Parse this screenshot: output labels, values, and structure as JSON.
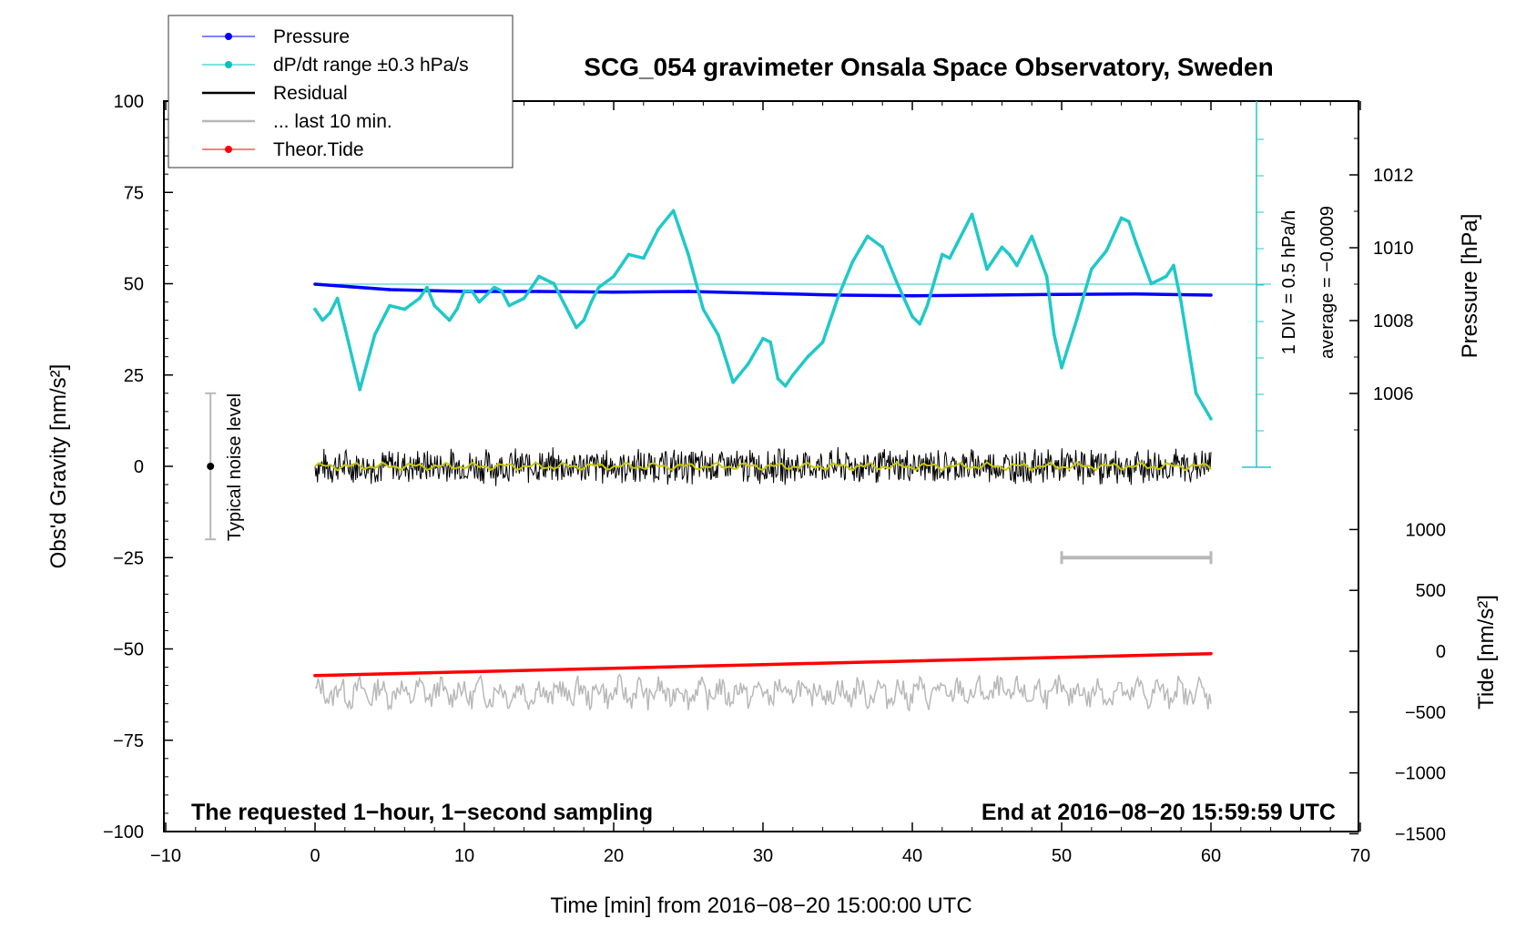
{
  "chart_data": {
    "type": "line",
    "title": "SCG_054 gravimeter Onsala Space Observatory, Sweden",
    "xlabel": "Time [min] from 2016−08−20 15:00:00 UTC",
    "ylabel_left": "Obs'd Gravity [nm/s²]",
    "ylabel_right_top": "Pressure [hPa]",
    "ylabel_right_bottom": "Tide [nm/s²]",
    "xlim": [
      -10,
      70
    ],
    "ylim_left": [
      -100,
      100
    ],
    "pressure_range": [
      1004,
      1014
    ],
    "tide_range": [
      -1500,
      1000
    ],
    "x_ticks": [
      "−10",
      "0",
      "10",
      "20",
      "30",
      "40",
      "50",
      "60",
      "70"
    ],
    "y_left_ticks": [
      "100",
      "75",
      "50",
      "25",
      "0",
      "−25",
      "−50",
      "−75",
      "−100"
    ],
    "pressure_ticks": [
      "1012",
      "1010",
      "1008",
      "1006"
    ],
    "tide_ticks": [
      "1000",
      "500",
      "0",
      "−500",
      "−1000",
      "−1500"
    ],
    "legend": {
      "placement": "top-left",
      "entries": [
        {
          "label": "Pressure",
          "color": "#0000ff",
          "marker": true
        },
        {
          "label": "dP/dt range ±0.3 hPa/s",
          "color": "#00c0c0",
          "marker": true
        },
        {
          "label": "Residual",
          "color": "#000000",
          "marker": false
        },
        {
          "label": "... last 10 min.",
          "color": "#b8b8b8",
          "marker": false
        },
        {
          "label": "Theor.Tide",
          "color": "#ff0000",
          "marker": true
        }
      ]
    },
    "series": [
      {
        "name": "Pressure",
        "color": "#0000ff",
        "axis": "pressure",
        "x": [
          0,
          5,
          10,
          15,
          20,
          25,
          30,
          35,
          40,
          45,
          50,
          55,
          60
        ],
        "values": [
          1009.0,
          1008.85,
          1008.8,
          1008.8,
          1008.78,
          1008.8,
          1008.75,
          1008.7,
          1008.68,
          1008.7,
          1008.72,
          1008.73,
          1008.7
        ]
      },
      {
        "name": "dP/dt range ±0.3 hPa/s",
        "color": "#20c8c8",
        "axis": "left",
        "x": [
          0,
          0.5,
          1,
          1.5,
          2,
          3,
          4,
          5,
          6,
          7,
          7.5,
          8,
          9,
          9.5,
          10,
          10.5,
          11,
          12,
          12.5,
          13,
          14,
          15,
          16,
          17,
          17.5,
          18,
          18.5,
          19,
          20,
          21,
          22,
          23,
          24,
          25,
          26,
          27,
          28,
          29,
          30,
          30.5,
          31,
          31.5,
          32,
          33,
          34,
          35,
          36,
          37,
          38,
          39,
          40,
          40.5,
          41,
          42,
          42.5,
          43,
          44,
          45,
          46,
          46.5,
          47,
          48,
          49,
          49.5,
          50,
          51,
          52,
          53,
          54,
          54.5,
          55,
          56,
          57,
          57.5,
          58,
          59,
          60
        ],
        "values": [
          43,
          40,
          42,
          46,
          38,
          21,
          36,
          44,
          43,
          46,
          49,
          44,
          40,
          43,
          48,
          48,
          45,
          49,
          48,
          44,
          46,
          52,
          50,
          42,
          38,
          40,
          45,
          49,
          52,
          58,
          57,
          65,
          70,
          58,
          43,
          36,
          23,
          28,
          35,
          34,
          24,
          22,
          25,
          30,
          34,
          46,
          56,
          63,
          60,
          50,
          41,
          39,
          44,
          58,
          57,
          61,
          69,
          54,
          60,
          58,
          55,
          63,
          52,
          36,
          27,
          40,
          54,
          59,
          68,
          67,
          61,
          50,
          52,
          55,
          45,
          20,
          13
        ]
      },
      {
        "name": "Theor.Tide",
        "color": "#ff0000",
        "axis": "tide",
        "x": [
          0,
          10,
          20,
          30,
          40,
          50,
          60
        ],
        "values": [
          -200,
          -170,
          -140,
          -110,
          -80,
          -50,
          -20
        ]
      }
    ],
    "residual_band": {
      "center": 0,
      "amplitude": 5,
      "smooth_color": "#c8c800"
    },
    "last_10_min_bar": {
      "x_start": 50,
      "x_end": 60
    },
    "pressure_reference_line_hPa": 1009,
    "dpdt_scale": {
      "label": "1 DIV = 0.5 hPa/h",
      "average": "average = −0.0009"
    },
    "noise_indicator": {
      "label": "Typical noise level",
      "range": [
        -20,
        20
      ],
      "x": -7
    },
    "annotations": {
      "left_bottom": "The requested 1−hour, 1−second sampling",
      "right_bottom": "End at 2016−08−20 15:59:59 UTC"
    }
  }
}
